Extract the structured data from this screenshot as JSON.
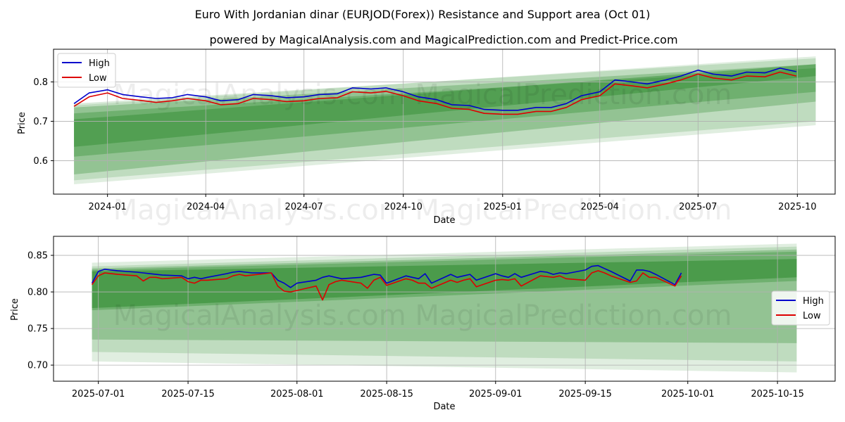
{
  "figure": {
    "title": "Euro With Jordanian dinar (EURJOD(Forex)) Resistance and Support area (Oct 01)",
    "subtitle": "powered by MagicalAnalysis.com and MagicalPrediction.com and Predict-Price.com",
    "watermark": "MagicalAnalysis.com    MagicalPrediction.com"
  },
  "colors": {
    "high": "#0000cc",
    "low": "#dd0000",
    "band": "#2e8b2e",
    "grid": "#b0b0b0"
  },
  "chart_data": [
    {
      "type": "line",
      "panel": "top",
      "title": "",
      "xlabel": "Date",
      "ylabel": "Price",
      "xlim": [
        "2023-11-12",
        "2025-11-05"
      ],
      "ylim": [
        0.515,
        0.883
      ],
      "xticks": [
        {
          "date": "2024-01-01",
          "label": "2024-01"
        },
        {
          "date": "2024-04-01",
          "label": "2024-04"
        },
        {
          "date": "2024-07-01",
          "label": "2024-07"
        },
        {
          "date": "2024-10-01",
          "label": "2024-10"
        },
        {
          "date": "2025-01-01",
          "label": "2025-01"
        },
        {
          "date": "2025-04-01",
          "label": "2025-04"
        },
        {
          "date": "2025-07-01",
          "label": "2025-07"
        },
        {
          "date": "2025-10-01",
          "label": "2025-10"
        }
      ],
      "yticks": [
        0.6,
        0.7,
        0.8
      ],
      "legend": {
        "position": "upper-left",
        "entries": [
          "High",
          "Low"
        ]
      },
      "bands": [
        {
          "x0": "2023-12-01",
          "x1": "2025-10-18",
          "lo0": 0.54,
          "hi0": 0.74,
          "lo1": 0.69,
          "hi1": 0.865,
          "opacity": 0.15
        },
        {
          "x0": "2023-12-01",
          "x1": "2025-10-18",
          "lo0": 0.55,
          "hi0": 0.745,
          "lo1": 0.7,
          "hi1": 0.86,
          "opacity": 0.18
        },
        {
          "x0": "2023-12-01",
          "x1": "2025-10-18",
          "lo0": 0.565,
          "hi0": 0.735,
          "lo1": 0.75,
          "hi1": 0.845,
          "opacity": 0.3
        },
        {
          "x0": "2023-12-01",
          "x1": "2025-10-18",
          "lo0": 0.61,
          "hi0": 0.72,
          "lo1": 0.775,
          "hi1": 0.835,
          "opacity": 0.35
        },
        {
          "x0": "2023-12-01",
          "x1": "2025-10-18",
          "lo0": 0.635,
          "hi0": 0.705,
          "lo1": 0.815,
          "hi1": 0.845,
          "opacity": 0.45
        }
      ],
      "x": [
        "2023-12-01",
        "2023-12-15",
        "2024-01-01",
        "2024-01-15",
        "2024-02-01",
        "2024-02-15",
        "2024-03-01",
        "2024-03-15",
        "2024-04-01",
        "2024-04-15",
        "2024-05-01",
        "2024-05-15",
        "2024-06-01",
        "2024-06-15",
        "2024-07-01",
        "2024-07-15",
        "2024-08-01",
        "2024-08-15",
        "2024-09-01",
        "2024-09-15",
        "2024-10-01",
        "2024-10-15",
        "2024-11-01",
        "2024-11-15",
        "2024-12-01",
        "2024-12-15",
        "2025-01-01",
        "2025-01-15",
        "2025-02-01",
        "2025-02-15",
        "2025-03-01",
        "2025-03-15",
        "2025-04-01",
        "2025-04-15",
        "2025-05-01",
        "2025-05-15",
        "2025-06-01",
        "2025-06-15",
        "2025-07-01",
        "2025-07-15",
        "2025-08-01",
        "2025-08-15",
        "2025-09-01",
        "2025-09-15",
        "2025-09-30"
      ],
      "series": [
        {
          "name": "High",
          "values": [
            0.745,
            0.772,
            0.78,
            0.768,
            0.762,
            0.758,
            0.76,
            0.768,
            0.762,
            0.752,
            0.755,
            0.768,
            0.765,
            0.76,
            0.762,
            0.768,
            0.77,
            0.785,
            0.782,
            0.785,
            0.775,
            0.762,
            0.755,
            0.742,
            0.74,
            0.73,
            0.728,
            0.728,
            0.735,
            0.735,
            0.745,
            0.765,
            0.775,
            0.805,
            0.8,
            0.795,
            0.805,
            0.815,
            0.83,
            0.82,
            0.815,
            0.825,
            0.823,
            0.835,
            0.826
          ]
        },
        {
          "name": "Low",
          "values": [
            0.738,
            0.762,
            0.772,
            0.758,
            0.753,
            0.748,
            0.752,
            0.758,
            0.752,
            0.742,
            0.745,
            0.758,
            0.755,
            0.75,
            0.752,
            0.758,
            0.76,
            0.775,
            0.772,
            0.776,
            0.765,
            0.752,
            0.745,
            0.733,
            0.73,
            0.72,
            0.718,
            0.718,
            0.725,
            0.725,
            0.735,
            0.755,
            0.765,
            0.795,
            0.79,
            0.785,
            0.795,
            0.805,
            0.82,
            0.81,
            0.805,
            0.815,
            0.813,
            0.825,
            0.815
          ]
        }
      ]
    },
    {
      "type": "line",
      "panel": "bottom",
      "title": "",
      "xlabel": "Date",
      "ylabel": "Price",
      "xlim": [
        "2025-06-24",
        "2025-10-24"
      ],
      "ylim": [
        0.678,
        0.876
      ],
      "xticks": [
        {
          "date": "2025-07-01",
          "label": "2025-07-01"
        },
        {
          "date": "2025-07-15",
          "label": "2025-07-15"
        },
        {
          "date": "2025-08-01",
          "label": "2025-08-01"
        },
        {
          "date": "2025-08-15",
          "label": "2025-08-15"
        },
        {
          "date": "2025-09-01",
          "label": "2025-09-01"
        },
        {
          "date": "2025-09-15",
          "label": "2025-09-15"
        },
        {
          "date": "2025-10-01",
          "label": "2025-10-01"
        },
        {
          "date": "2025-10-15",
          "label": "2025-10-15"
        }
      ],
      "yticks": [
        0.7,
        0.75,
        0.8,
        0.85
      ],
      "legend": {
        "position": "center-right",
        "entries": [
          "High",
          "Low"
        ]
      },
      "bands": [
        {
          "x0": "2025-06-30",
          "x1": "2025-10-18",
          "lo0": 0.705,
          "hi0": 0.84,
          "lo1": 0.69,
          "hi1": 0.866,
          "opacity": 0.15
        },
        {
          "x0": "2025-06-30",
          "x1": "2025-10-18",
          "lo0": 0.718,
          "hi0": 0.835,
          "lo1": 0.705,
          "hi1": 0.862,
          "opacity": 0.18
        },
        {
          "x0": "2025-06-30",
          "x1": "2025-10-18",
          "lo0": 0.735,
          "hi0": 0.832,
          "lo1": 0.73,
          "hi1": 0.858,
          "opacity": 0.3
        },
        {
          "x0": "2025-06-30",
          "x1": "2025-10-18",
          "lo0": 0.775,
          "hi0": 0.83,
          "lo1": 0.815,
          "hi1": 0.855,
          "opacity": 0.35
        },
        {
          "x0": "2025-06-30",
          "x1": "2025-10-18",
          "lo0": 0.778,
          "hi0": 0.828,
          "lo1": 0.82,
          "hi1": 0.845,
          "opacity": 0.55
        }
      ],
      "x": [
        "2025-06-30",
        "2025-07-01",
        "2025-07-02",
        "2025-07-03",
        "2025-07-04",
        "2025-07-07",
        "2025-07-08",
        "2025-07-09",
        "2025-07-10",
        "2025-07-11",
        "2025-07-14",
        "2025-07-15",
        "2025-07-16",
        "2025-07-17",
        "2025-07-18",
        "2025-07-21",
        "2025-07-22",
        "2025-07-23",
        "2025-07-24",
        "2025-07-25",
        "2025-07-28",
        "2025-07-29",
        "2025-07-30",
        "2025-07-31",
        "2025-08-01",
        "2025-08-04",
        "2025-08-05",
        "2025-08-06",
        "2025-08-07",
        "2025-08-08",
        "2025-08-11",
        "2025-08-12",
        "2025-08-13",
        "2025-08-14",
        "2025-08-15",
        "2025-08-18",
        "2025-08-19",
        "2025-08-20",
        "2025-08-21",
        "2025-08-22",
        "2025-08-25",
        "2025-08-26",
        "2025-08-27",
        "2025-08-28",
        "2025-08-29",
        "2025-09-01",
        "2025-09-02",
        "2025-09-03",
        "2025-09-04",
        "2025-09-05",
        "2025-09-08",
        "2025-09-09",
        "2025-09-10",
        "2025-09-11",
        "2025-09-12",
        "2025-09-15",
        "2025-09-16",
        "2025-09-17",
        "2025-09-18",
        "2025-09-19",
        "2025-09-22",
        "2025-09-23",
        "2025-09-24",
        "2025-09-25",
        "2025-09-26",
        "2025-09-29",
        "2025-09-30"
      ],
      "series": [
        {
          "name": "High",
          "values": [
            0.812,
            0.828,
            0.831,
            0.83,
            0.829,
            0.827,
            0.826,
            0.825,
            0.824,
            0.823,
            0.822,
            0.818,
            0.82,
            0.818,
            0.82,
            0.825,
            0.827,
            0.828,
            0.827,
            0.826,
            0.826,
            0.816,
            0.812,
            0.806,
            0.812,
            0.816,
            0.82,
            0.822,
            0.82,
            0.818,
            0.82,
            0.822,
            0.824,
            0.823,
            0.812,
            0.822,
            0.82,
            0.818,
            0.825,
            0.812,
            0.824,
            0.82,
            0.822,
            0.824,
            0.816,
            0.825,
            0.822,
            0.82,
            0.825,
            0.82,
            0.828,
            0.827,
            0.824,
            0.826,
            0.825,
            0.83,
            0.835,
            0.836,
            0.832,
            0.828,
            0.815,
            0.83,
            0.83,
            0.828,
            0.824,
            0.81,
            0.826
          ]
        },
        {
          "name": "Low",
          "values": [
            0.81,
            0.822,
            0.826,
            0.825,
            0.824,
            0.822,
            0.815,
            0.82,
            0.82,
            0.818,
            0.82,
            0.814,
            0.812,
            0.816,
            0.816,
            0.818,
            0.822,
            0.824,
            0.822,
            0.823,
            0.826,
            0.808,
            0.801,
            0.8,
            0.802,
            0.808,
            0.789,
            0.81,
            0.814,
            0.816,
            0.812,
            0.805,
            0.816,
            0.82,
            0.809,
            0.818,
            0.816,
            0.812,
            0.812,
            0.805,
            0.816,
            0.813,
            0.816,
            0.818,
            0.807,
            0.816,
            0.817,
            0.816,
            0.818,
            0.808,
            0.822,
            0.821,
            0.82,
            0.822,
            0.818,
            0.816,
            0.826,
            0.829,
            0.826,
            0.822,
            0.813,
            0.815,
            0.826,
            0.82,
            0.82,
            0.808,
            0.822
          ]
        }
      ]
    }
  ]
}
